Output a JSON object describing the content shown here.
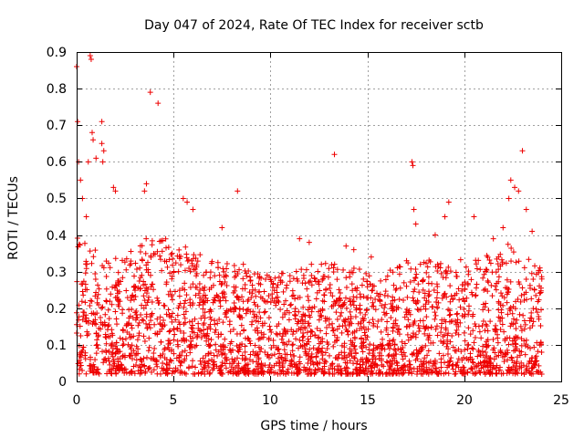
{
  "chart_data": {
    "type": "scatter",
    "title": "Day 047 of 2024, Rate Of TEC Index for receiver sctb",
    "xlabel": "GPS time / hours",
    "ylabel": "ROTI / TECUs",
    "xlim": [
      0,
      25
    ],
    "ylim": [
      0,
      0.9
    ],
    "xticks": [
      "0",
      "5",
      "10",
      "15",
      "20",
      "25"
    ],
    "yticks": [
      "0",
      "0.1",
      "0.2",
      "0.3",
      "0.4",
      "0.5",
      "0.6",
      "0.7",
      "0.8",
      "0.9"
    ],
    "grid": true,
    "marker": "+",
    "color": "#ee0000",
    "series": [
      {
        "name": "ROTI",
        "description": "Dense cloud of ~10 000 points (one every ~10 s) from 0 to 24 h; representative envelope and outliers listed",
        "points": [
          [
            0.0,
            0.86
          ],
          [
            0.05,
            0.71
          ],
          [
            0.1,
            0.6
          ],
          [
            0.2,
            0.55
          ],
          [
            0.3,
            0.5
          ],
          [
            0.5,
            0.45
          ],
          [
            0.6,
            0.6
          ],
          [
            0.7,
            0.89
          ],
          [
            0.75,
            0.88
          ],
          [
            0.8,
            0.68
          ],
          [
            0.85,
            0.66
          ],
          [
            1.0,
            0.61
          ],
          [
            1.3,
            0.71
          ],
          [
            1.3,
            0.65
          ],
          [
            1.4,
            0.63
          ],
          [
            1.35,
            0.6
          ],
          [
            1.9,
            0.53
          ],
          [
            2.0,
            0.52
          ],
          [
            3.5,
            0.52
          ],
          [
            3.6,
            0.54
          ],
          [
            3.8,
            0.79
          ],
          [
            4.2,
            0.76
          ],
          [
            5.5,
            0.5
          ],
          [
            5.7,
            0.49
          ],
          [
            6.0,
            0.47
          ],
          [
            7.5,
            0.42
          ],
          [
            8.3,
            0.52
          ],
          [
            8.6,
            0.32
          ],
          [
            11.5,
            0.39
          ],
          [
            12.0,
            0.38
          ],
          [
            13.3,
            0.62
          ],
          [
            13.9,
            0.37
          ],
          [
            14.3,
            0.36
          ],
          [
            15.2,
            0.34
          ],
          [
            17.3,
            0.6
          ],
          [
            17.35,
            0.59
          ],
          [
            17.4,
            0.47
          ],
          [
            17.5,
            0.43
          ],
          [
            18.5,
            0.4
          ],
          [
            19.0,
            0.45
          ],
          [
            19.2,
            0.49
          ],
          [
            20.5,
            0.45
          ],
          [
            21.5,
            0.39
          ],
          [
            22.0,
            0.42
          ],
          [
            22.3,
            0.5
          ],
          [
            22.4,
            0.55
          ],
          [
            22.6,
            0.53
          ],
          [
            22.8,
            0.52
          ],
          [
            23.0,
            0.63
          ],
          [
            23.2,
            0.47
          ],
          [
            23.5,
            0.41
          ],
          [
            23.9,
            0.31
          ],
          [
            24.0,
            0.28
          ]
        ],
        "dense_band": {
          "x_range": [
            0,
            24
          ],
          "lower": 0.02,
          "upper_by_hour": [
            0.42,
            0.36,
            0.34,
            0.36,
            0.42,
            0.38,
            0.36,
            0.33,
            0.32,
            0.3,
            0.3,
            0.3,
            0.32,
            0.33,
            0.32,
            0.3,
            0.3,
            0.33,
            0.34,
            0.32,
            0.34,
            0.34,
            0.38,
            0.36,
            0.3
          ]
        }
      }
    ]
  }
}
